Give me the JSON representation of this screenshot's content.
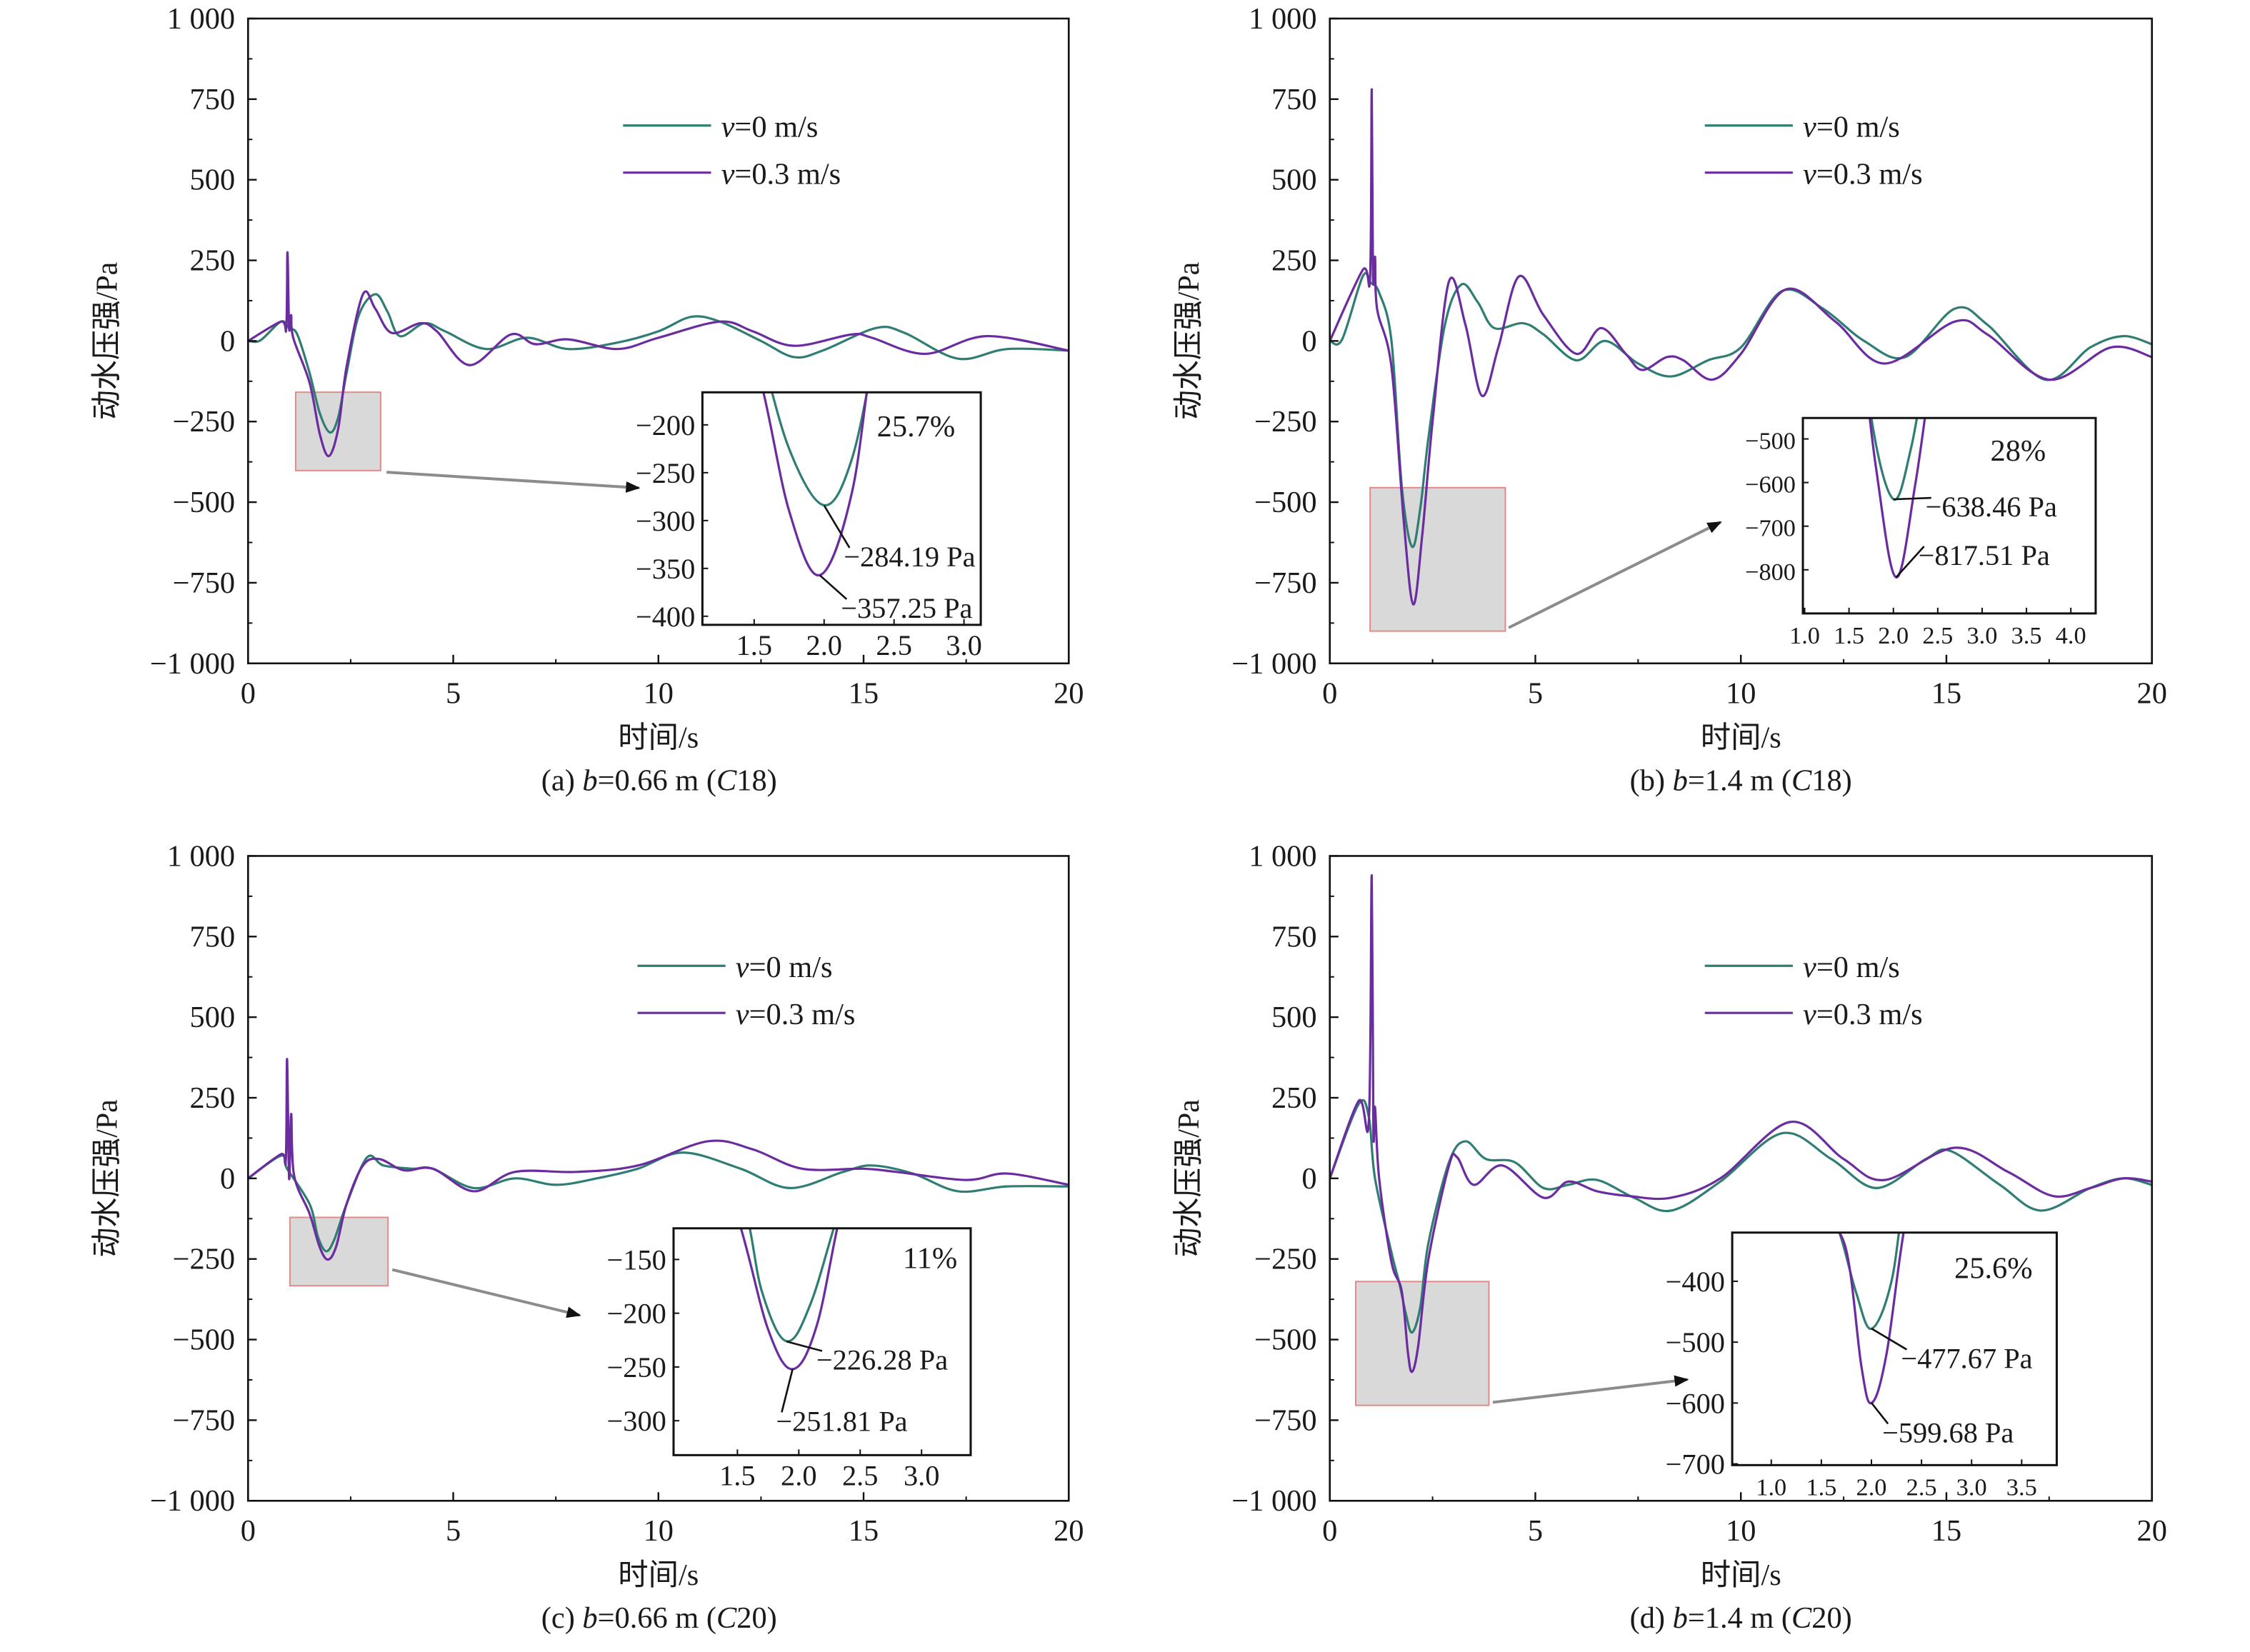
{
  "colors": {
    "v0": "#2f7d73",
    "v03": "#6b2c9f",
    "zoom_box_fill": "#d9d9d9",
    "zoom_box_border": "#e38a8a",
    "arrow": "#8c8c8c"
  },
  "chart_data": [
    {
      "type": "line",
      "caption": {
        "prefix": "(a) ",
        "var1": "b",
        "mid": "=0.66 m (",
        "var2": "C",
        "suffix": "18)"
      },
      "xlabel": "时间/s",
      "ylabel": "动水压强/Pa",
      "xlim": [
        0,
        20
      ],
      "ylim": [
        -1000,
        1000
      ],
      "xticks": [
        "0",
        "5",
        "10",
        "15",
        "20"
      ],
      "yticks": [
        "1 000",
        "750",
        "500",
        "250",
        "0",
        "−250",
        "−500",
        "−750",
        "−1 000"
      ],
      "legend": [
        {
          "var": "v",
          "rest": "=0 m/s"
        },
        {
          "var": "v",
          "rest": "=0.3 m/s"
        }
      ],
      "legend_position": "top-right",
      "series": [
        {
          "name": "v=0 m/s",
          "x": [
            0,
            0.3,
            0.8,
            1.0,
            1.2,
            1.5,
            1.75,
            2.0,
            2.2,
            2.4,
            2.7,
            3.1,
            3.4,
            3.7,
            4.3,
            4.8,
            5.8,
            6.8,
            7.8,
            9,
            10,
            10.8,
            11.5,
            12.5,
            13.3,
            14,
            15.3,
            16,
            17.3,
            18.5,
            20
          ],
          "y": [
            0,
            2,
            60,
            40,
            20,
            -100,
            -225,
            -284,
            -235,
            -100,
            80,
            145,
            90,
            15,
            55,
            30,
            -25,
            10,
            -25,
            -5,
            30,
            75,
            60,
            0,
            -50,
            -30,
            40,
            25,
            -55,
            -25,
            -30
          ]
        },
        {
          "name": "v=0.3 m/s",
          "x": [
            0,
            0.8,
            0.93,
            0.96,
            1.0,
            1.05,
            1.1,
            1.5,
            1.75,
            1.97,
            2.2,
            2.4,
            2.8,
            3.1,
            3.5,
            4.2,
            4.6,
            5.4,
            6.4,
            7.0,
            7.8,
            9,
            10,
            11.5,
            12.3,
            13.3,
            14.7,
            15.2,
            16.5,
            18,
            20
          ],
          "y": [
            0,
            60,
            40,
            275,
            40,
            80,
            10,
            -130,
            -290,
            -357,
            -270,
            -80,
            145,
            100,
            25,
            55,
            30,
            -75,
            20,
            -10,
            5,
            -25,
            10,
            60,
            30,
            -15,
            20,
            10,
            -40,
            15,
            -30
          ]
        }
      ],
      "inset": {
        "xlim": [
          1.13,
          3.12
        ],
        "ylim": [
          -409,
          -166
        ],
        "xticks": [
          1.5,
          2.0,
          2.5,
          3.0
        ],
        "xtick_labels": [
          "1.5",
          "2.0",
          "2.5",
          "3.0"
        ],
        "yticks": [
          -200,
          -250,
          -300,
          -350,
          -400
        ],
        "ytick_labels": [
          "−200",
          "−250",
          "−300",
          "−350",
          "−400"
        ],
        "zoom_region": {
          "x": [
            1.16,
            3.23
          ],
          "y": [
            -402,
            -159
          ]
        },
        "percent": "25.7%",
        "annotations": [
          {
            "text": "−284.19 Pa",
            "x": 2.0,
            "y": -284.19
          },
          {
            "text": "−357.25 Pa",
            "x": 1.97,
            "y": -357.25
          }
        ]
      }
    },
    {
      "type": "line",
      "caption": {
        "prefix": "(b) ",
        "var1": "b",
        "mid": "=1.4 m (",
        "var2": "C",
        "suffix": "18)"
      },
      "xlabel": "时间/s",
      "ylabel": "动水压强/Pa",
      "xlim": [
        0,
        20
      ],
      "ylim": [
        -1000,
        1000
      ],
      "xticks": [
        "0",
        "5",
        "10",
        "15",
        "20"
      ],
      "yticks": [
        "1 000",
        "750",
        "500",
        "250",
        "0",
        "−250",
        "−500",
        "−750",
        "−1 000"
      ],
      "legend": [
        {
          "var": "v",
          "rest": "=0 m/s"
        },
        {
          "var": "v",
          "rest": "=0.3 m/s"
        }
      ],
      "legend_position": "top-right",
      "series": [
        {
          "name": "v=0 m/s",
          "x": [
            0,
            0.3,
            0.8,
            1.0,
            1.2,
            1.5,
            1.75,
            2.0,
            2.2,
            2.4,
            2.8,
            3.2,
            3.6,
            4.0,
            4.7,
            5.2,
            6.0,
            6.7,
            7.5,
            8.3,
            9.2,
            10,
            11,
            12,
            13,
            14,
            15.2,
            16,
            17.4,
            18.5,
            19.3,
            20
          ],
          "y": [
            0,
            5,
            200,
            180,
            150,
            0,
            -450,
            -638,
            -520,
            -300,
            50,
            175,
            120,
            40,
            55,
            20,
            -60,
            0,
            -70,
            -110,
            -60,
            -20,
            155,
            100,
            0,
            -50,
            100,
            50,
            -120,
            -20,
            15,
            -10
          ]
        },
        {
          "name": "v=0.3 m/s",
          "x": [
            0,
            0.8,
            0.98,
            1.02,
            1.05,
            1.1,
            1.15,
            1.5,
            1.8,
            2.03,
            2.25,
            2.5,
            2.9,
            3.3,
            3.7,
            4.1,
            4.6,
            5.2,
            6.0,
            6.6,
            7.2,
            7.6,
            8.2,
            8.6,
            9.3,
            10,
            11.1,
            12.3,
            13.5,
            15.2,
            16,
            17.5,
            19,
            20
          ],
          "y": [
            0,
            220,
            200,
            780,
            200,
            260,
            100,
            -80,
            -560,
            -817,
            -600,
            -250,
            185,
            50,
            -170,
            -20,
            200,
            80,
            -40,
            40,
            -40,
            -90,
            -50,
            -60,
            -120,
            -40,
            160,
            60,
            -70,
            60,
            20,
            -120,
            -20,
            -50
          ]
        }
      ],
      "inset": {
        "xlim": [
          0.98,
          4.28
        ],
        "ylim": [
          -900,
          -452
        ],
        "xticks": [
          1.0,
          1.5,
          2.0,
          2.5,
          3.0,
          3.5,
          4.0
        ],
        "xtick_labels": [
          "1.0",
          "1.5",
          "2.0",
          "2.5",
          "3.0",
          "3.5",
          "4.0"
        ],
        "yticks": [
          -500,
          -600,
          -700,
          -800
        ],
        "ytick_labels": [
          "−500",
          "−600",
          "−700",
          "−800"
        ],
        "zoom_region": {
          "x": [
            0.98,
            4.27
          ],
          "y": [
            -900,
            -455
          ]
        },
        "percent": "28%",
        "annotations": [
          {
            "text": "−638.46 Pa",
            "x": 2.0,
            "y": -638.46
          },
          {
            "text": "−817.51 Pa",
            "x": 2.03,
            "y": -817.51
          }
        ]
      }
    },
    {
      "type": "line",
      "caption": {
        "prefix": "(c) ",
        "var1": "b",
        "mid": "=0.66 m (",
        "var2": "C",
        "suffix": "20)"
      },
      "xlabel": "时间/s",
      "ylabel": "动水压强/Pa",
      "xlim": [
        0,
        20
      ],
      "ylim": [
        -1000,
        1000
      ],
      "xticks": [
        "0",
        "5",
        "10",
        "15",
        "20"
      ],
      "yticks": [
        "1 000",
        "750",
        "500",
        "250",
        "0",
        "−250",
        "−500",
        "−750",
        "−1 000"
      ],
      "legend": [
        {
          "var": "v",
          "rest": "=0 m/s"
        },
        {
          "var": "v",
          "rest": "=0.3 m/s"
        }
      ],
      "legend_position": "top-right",
      "series": [
        {
          "name": "v=0 m/s",
          "x": [
            0,
            0.8,
            0.95,
            1.5,
            1.7,
            1.9,
            2.1,
            2.4,
            2.9,
            3.3,
            4,
            4.5,
            5.5,
            6.5,
            7.5,
            8.5,
            9.5,
            10.6,
            12,
            13.2,
            14.5,
            15.2,
            16.2,
            17.3,
            18.5,
            20
          ],
          "y": [
            0,
            70,
            30,
            -80,
            -180,
            -226,
            -190,
            -80,
            65,
            40,
            30,
            30,
            -30,
            0,
            -20,
            0,
            30,
            80,
            30,
            -30,
            20,
            40,
            15,
            -40,
            -25,
            -25
          ]
        },
        {
          "name": "v=0.3 m/s",
          "x": [
            0,
            0.8,
            0.92,
            0.95,
            1.0,
            1.05,
            1.12,
            1.5,
            1.75,
            1.95,
            2.15,
            2.4,
            2.8,
            3.2,
            3.8,
            4.5,
            5.5,
            6.5,
            8,
            9.5,
            11.2,
            12.3,
            13.5,
            15,
            15.8,
            17.5,
            18.5,
            20
          ],
          "y": [
            0,
            75,
            60,
            370,
            0,
            200,
            10,
            -110,
            -215,
            -252,
            -210,
            -80,
            40,
            60,
            25,
            30,
            -40,
            20,
            20,
            40,
            115,
            90,
            30,
            30,
            20,
            -5,
            15,
            -20
          ]
        }
      ],
      "inset": {
        "xlim": [
          0.98,
          3.4
        ],
        "ylim": [
          -332,
          -121
        ],
        "xticks": [
          1.5,
          2.0,
          2.5,
          3.0
        ],
        "xtick_labels": [
          "1.5",
          "2.0",
          "2.5",
          "3.0"
        ],
        "yticks": [
          -150,
          -200,
          -250,
          -300
        ],
        "ytick_labels": [
          "−150",
          "−200",
          "−250",
          "−300"
        ],
        "zoom_region": {
          "x": [
            1.02,
            3.41
          ],
          "y": [
            -333,
            -121
          ]
        },
        "percent": "11%",
        "annotations": [
          {
            "text": "−226.28 Pa",
            "x": 1.9,
            "y": -226.28
          },
          {
            "text": "−251.81 Pa",
            "x": 1.95,
            "y": -251.81
          }
        ]
      }
    },
    {
      "type": "line",
      "caption": {
        "prefix": "(d) ",
        "var1": "b",
        "mid": "=1.4 m (",
        "var2": "C",
        "suffix": "20)"
      },
      "xlabel": "时间/s",
      "ylabel": "动水压强/Pa",
      "xlim": [
        0,
        20
      ],
      "ylim": [
        -1000,
        1000
      ],
      "xticks": [
        "0",
        "5",
        "10",
        "15",
        "20"
      ],
      "yticks": [
        "1 000",
        "750",
        "500",
        "250",
        "0",
        "−250",
        "−500",
        "−750",
        "−1 000"
      ],
      "legend": [
        {
          "var": "v",
          "rest": "=0 m/s"
        },
        {
          "var": "v",
          "rest": "=0.3 m/s"
        }
      ],
      "legend_position": "top-right",
      "series": [
        {
          "name": "v=0 m/s",
          "x": [
            0,
            0.7,
            0.95,
            1.1,
            1.5,
            1.7,
            1.85,
            2.0,
            2.2,
            2.4,
            2.9,
            3.3,
            3.8,
            4.5,
            5.2,
            5.8,
            6.5,
            7.4,
            8.3,
            9.5,
            11.0,
            12.2,
            13.3,
            14.5,
            15.1,
            16.3,
            17.3,
            18.5,
            19.3,
            20
          ],
          "y": [
            0,
            230,
            190,
            0,
            -230,
            -330,
            -420,
            -478,
            -400,
            -200,
            50,
            115,
            60,
            50,
            -30,
            -20,
            -5,
            -60,
            -100,
            -10,
            140,
            60,
            -30,
            60,
            85,
            -20,
            -100,
            -30,
            0,
            -20
          ]
        },
        {
          "name": "v=0.3 m/s",
          "x": [
            0,
            0.7,
            0.95,
            1.02,
            1.06,
            1.1,
            1.2,
            1.5,
            1.75,
            1.9,
            2.0,
            2.15,
            2.4,
            2.9,
            3.1,
            3.5,
            4.2,
            5.2,
            5.8,
            6.5,
            7.3,
            8.3,
            9.5,
            11.2,
            12.5,
            13.5,
            15.2,
            16.5,
            17.6,
            18.5,
            19.3,
            20
          ],
          "y": [
            0,
            240,
            180,
            940,
            150,
            220,
            0,
            -260,
            -350,
            -540,
            -600,
            -520,
            -250,
            40,
            65,
            -20,
            40,
            -60,
            -10,
            -40,
            -55,
            -60,
            0,
            175,
            60,
            -5,
            95,
            20,
            -55,
            -30,
            0,
            -10
          ]
        }
      ],
      "inset": {
        "xlim": [
          0.61,
          3.85
        ],
        "ylim": [
          -702,
          -320
        ],
        "xticks": [
          1.0,
          1.5,
          2.0,
          2.5,
          3.0,
          3.5
        ],
        "xtick_labels": [
          "1.0",
          "1.5",
          "2.0",
          "2.5",
          "3.0",
          "3.5"
        ],
        "yticks": [
          -400,
          -500,
          -600,
          -700
        ],
        "ytick_labels": [
          "−400",
          "−500",
          "−600",
          "−700"
        ],
        "zoom_region": {
          "x": [
            0.63,
            3.87
          ],
          "y": [
            -704,
            -320
          ]
        },
        "percent": "25.6%",
        "annotations": [
          {
            "text": "−477.67 Pa",
            "x": 2.0,
            "y": -477.67
          },
          {
            "text": "−599.68 Pa",
            "x": 2.0,
            "y": -599.68
          }
        ]
      }
    }
  ]
}
